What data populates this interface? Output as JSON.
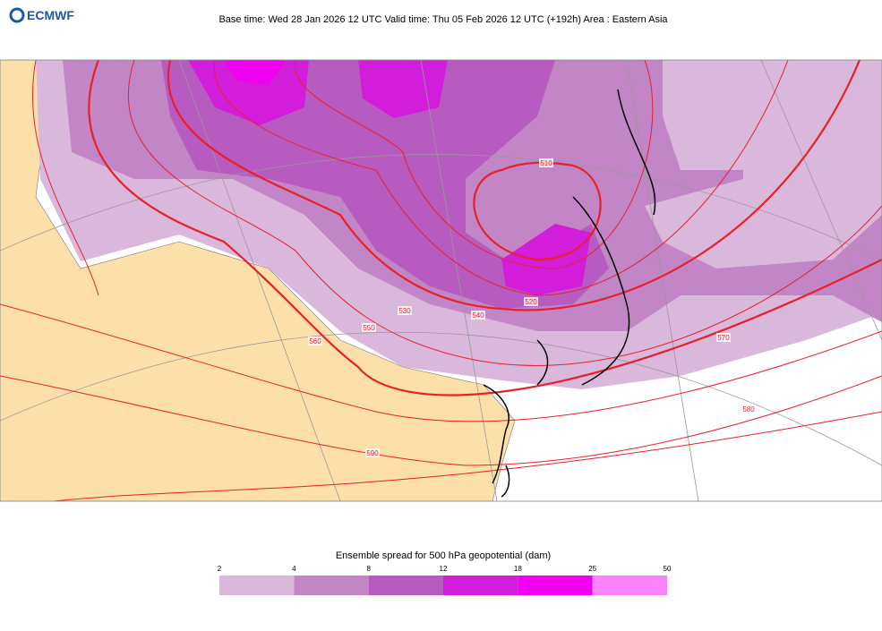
{
  "header": {
    "logo": "ECMWF",
    "title": "Base time: Wed 28 Jan 2026 12 UTC Valid time: Thu 05 Feb 2026 12 UTC (+192h) Area : Eastern Asia"
  },
  "map": {
    "contour_labels": [
      "510",
      "520",
      "530",
      "540",
      "550",
      "560",
      "570",
      "580",
      "590"
    ]
  },
  "legend": {
    "title": "Ensemble spread for 500 hPa geopotential (dam)",
    "ticks": [
      2,
      4,
      8,
      12,
      18,
      25,
      50
    ],
    "colors": [
      "#d9b8dc",
      "#c285c6",
      "#b85bc0",
      "#d21edb",
      "#f000f0",
      "#fa82fa"
    ]
  }
}
